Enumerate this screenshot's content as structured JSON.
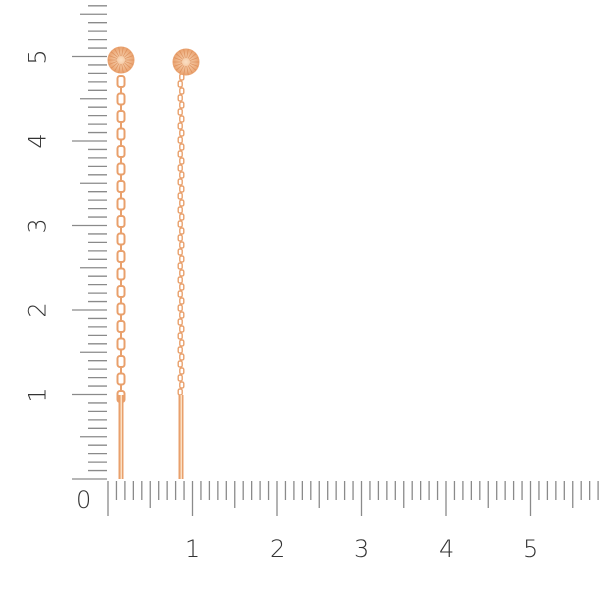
{
  "ruler": {
    "unit_labels": [
      "0",
      "1",
      "2",
      "3",
      "4",
      "5"
    ],
    "tick_color": "#8a8a8a",
    "label_color": "#333333"
  },
  "product": {
    "items": [
      {
        "type": "chain-thread earring",
        "chain": "large-link"
      },
      {
        "type": "chain-thread earring",
        "chain": "fine-link"
      }
    ],
    "metal_color": "#e9a06c",
    "highlight_color": "#fbe0c4"
  }
}
